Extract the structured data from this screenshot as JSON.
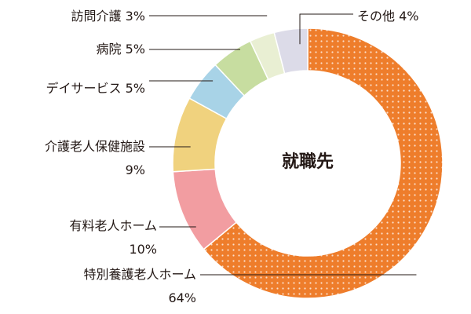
{
  "chart_data": {
    "type": "pie",
    "variant": "donut",
    "center_label": "就職先",
    "slices": [
      {
        "label": "特別養護老人ホーム",
        "value": 64,
        "value_label": "64%",
        "color": "#ee7d2b",
        "pattern": "dots"
      },
      {
        "label": "有料老人ホーム",
        "value": 10,
        "value_label": "10%",
        "color": "#f29da1"
      },
      {
        "label": "介護老人保健施設",
        "value": 9,
        "value_label": "9%",
        "color": "#f0d27e"
      },
      {
        "label": "デイサービス",
        "value": 5,
        "value_label": "5%",
        "color": "#a8d3e7"
      },
      {
        "label": "病院",
        "value": 5,
        "value_label": "5%",
        "color": "#c7dda0"
      },
      {
        "label": "訪問介護",
        "value": 3,
        "value_label": "3%",
        "color": "#e9efd3"
      },
      {
        "label": "その他",
        "value": 4,
        "value_label": "4%",
        "color": "#dcdbe8"
      }
    ]
  }
}
